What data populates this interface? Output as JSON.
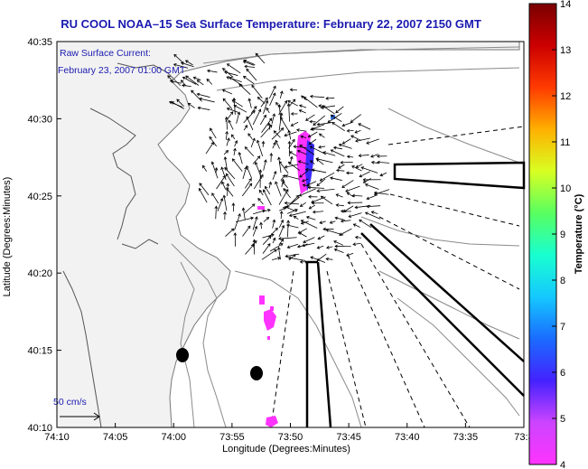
{
  "title": "RU COOL  NOAA–15  Sea Surface Temperature:  February 22, 2007 2150 GMT",
  "current_note": {
    "line1": "Raw Surface Current:",
    "line2": "February 23, 2007 01:00 GMT"
  },
  "scale_label": "50 cm/s",
  "x_axis": {
    "label": "Longitude (Degrees:Minutes)",
    "ticks": [
      "74:10",
      "74:05",
      "74:00",
      "73:55",
      "73:50",
      "73:45",
      "73:40",
      "73:35",
      "73:3"
    ]
  },
  "y_axis": {
    "label": "Latitude (Degrees:Minutes)",
    "ticks": [
      "40:10",
      "40:15",
      "40:20",
      "40:25",
      "40:30",
      "40:35"
    ]
  },
  "colorbar": {
    "label": "Temperature (°C)",
    "ticks": [
      "4",
      "5",
      "6",
      "7",
      "8",
      "9",
      "10",
      "11",
      "12",
      "13",
      "14"
    ],
    "range": [
      4,
      14
    ],
    "colors": [
      "#ff33ff",
      "#cc44ff",
      "#4422ff",
      "#1a6cff",
      "#15c8ff",
      "#19ffd0",
      "#58ff60",
      "#d8ff22",
      "#ffb000",
      "#ff3a00",
      "#cc0000",
      "#7a0000"
    ]
  },
  "colors": {
    "title": "#1a1ab0",
    "land": "#f2f2f2",
    "contour": "#888888",
    "sst_cold": "#ff33ff",
    "sst_blue": "#3a2aff"
  }
}
